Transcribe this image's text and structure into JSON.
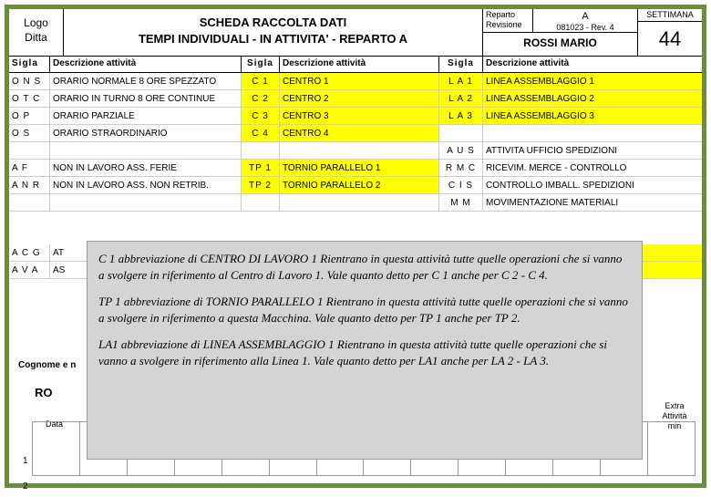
{
  "header": {
    "logo_line1": "Logo",
    "logo_line2": "Ditta",
    "title_line1": "SCHEDA RACCOLTA DATI",
    "title_line2": "TEMPI INDIVIDUALI   -   IN ATTIVITA'   -   REPARTO  A",
    "meta_reparto_label": "Reparto",
    "meta_rev_label": "Revisione",
    "meta_reparto_value": "A",
    "meta_rev_value": "081023 - Rev. 4",
    "meta_name": "ROSSI MARIO",
    "week_label": "SETTIMANA",
    "week_value": "44"
  },
  "col_headers": {
    "sigla": "Sigla",
    "desc": "Descrizione attività"
  },
  "rows": [
    {
      "s1": "O N S",
      "d1": "ORARIO NORMALE 8 ORE SPEZZATO",
      "hl1": false,
      "s2": "C 1",
      "d2": "CENTRO 1",
      "hl2": true,
      "s3": "L A 1",
      "d3": "LINEA ASSEMBLAGGIO  1",
      "hl3": true
    },
    {
      "s1": "O T C",
      "d1": "ORARIO IN TURNO 8 ORE CONTINUE",
      "hl1": false,
      "s2": "C 2",
      "d2": "CENTRO 2",
      "hl2": true,
      "s3": "L A 2",
      "d3": "LINEA ASSEMBLAGGIO  2",
      "hl3": true
    },
    {
      "s1": "O P",
      "d1": "ORARIO PARZIALE",
      "hl1": false,
      "s2": "C 3",
      "d2": "CENTRO 3",
      "hl2": true,
      "s3": "L A 3",
      "d3": "LINEA ASSEMBLAGGIO  3",
      "hl3": true
    },
    {
      "s1": "O S",
      "d1": "ORARIO STRAORDINARIO",
      "hl1": false,
      "s2": "C 4",
      "d2": "CENTRO 4",
      "hl2": true,
      "s3": "",
      "d3": "",
      "hl3": false
    },
    {
      "s1": "",
      "d1": "",
      "hl1": false,
      "s2": "",
      "d2": "",
      "hl2": false,
      "s3": "A U S",
      "d3": "ATTIVITA  UFFICIO SPEDIZIONI",
      "hl3": false
    },
    {
      "s1": "A F",
      "d1": "NON IN LAVORO ASS. FERIE",
      "hl1": false,
      "s2": "TP 1",
      "d2": "TORNIO PARALLELO 1",
      "hl2": true,
      "s3": "R M C",
      "d3": "RICEVIM.  MERCE  - CONTROLLO",
      "hl3": false
    },
    {
      "s1": "A N R",
      "d1": "NON IN LAVORO ASS. NON RETRIB.",
      "hl1": false,
      "s2": "TP 2",
      "d2": "TORNIO PARALLELO 2",
      "hl2": true,
      "s3": "C I S",
      "d3": "CONTROLLO IMBALL. SPEDIZIONI",
      "hl3": false
    },
    {
      "s1": "",
      "d1": "",
      "hl1": false,
      "s2": "",
      "d2": "",
      "hl2": false,
      "s3": "M M",
      "d3": "MOVIMENTAZIONE MATERIALI",
      "hl3": false
    }
  ],
  "partial_rows": [
    {
      "s1": "A C G",
      "d1": "AT",
      "hl3": true
    },
    {
      "s1": "A V A",
      "d1": "AS",
      "hl3": true
    }
  ],
  "overlay": {
    "p1": "C 1  abbreviazione di  CENTRO DI LAVORO 1 Rientrano in questa attività tutte quelle operazioni che si vanno a svolgere  in riferimento al Centro di Lavoro 1.  Vale  quanto detto per  C 1 anche per  C 2 - C 4.",
    "p2": "TP 1 abbreviazione di  TORNIO PARALLELO 1  Rientrano in questa attività tutte quelle operazioni che si vanno a svolgere  in riferimento a questa Macchina.  Vale  quanto detto per TP 1  anche per  TP 2.",
    "p3": "LA1  abbreviazione di  LINEA ASSEMBLAGGIO 1  Rientrano in questa attività tutte quelle operazioni che si vanno a svolgere  in riferimento alla Linea 1.  Vale  quanto detto  per  LA1 anche per  LA 2 -  LA 3."
  },
  "labels": {
    "cognome": "Cognome e n",
    "ro": "RO",
    "data": "Data",
    "r1": "1",
    "r2": "2",
    "extra_l1": "Extra",
    "extra_l2": "Attività",
    "extra_l3": "min"
  },
  "colors": {
    "border_green": "#6b8e3d",
    "highlight": "#ffff00",
    "overlay_bg": "#d4d4d4"
  }
}
